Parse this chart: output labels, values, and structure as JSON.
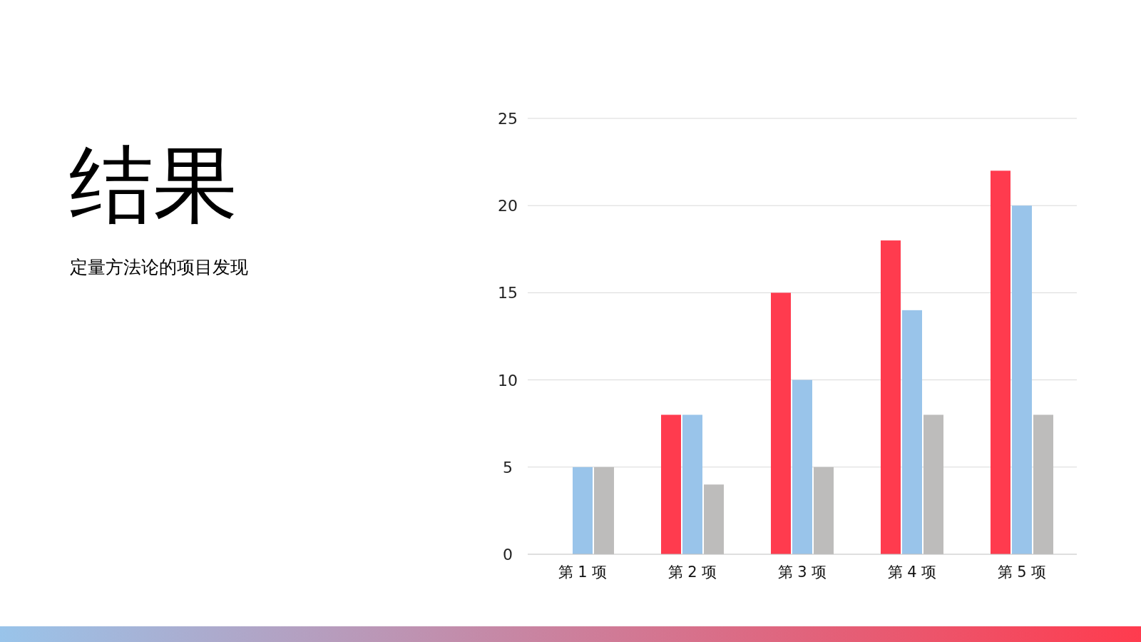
{
  "chart_data": {
    "type": "bar",
    "title": "结果",
    "subtitle": "定量方法论的项目发现",
    "categories": [
      "第 1 项",
      "第 2 项",
      "第 3 项",
      "第 4 项",
      "第 5 项"
    ],
    "series": [
      {
        "color": "#ff3b4e",
        "values": [
          0,
          8,
          15,
          18,
          22
        ]
      },
      {
        "color": "#99c4ea",
        "values": [
          5,
          8,
          10,
          14,
          20
        ]
      },
      {
        "color": "#bdbcbb",
        "values": [
          5,
          4,
          5,
          8,
          8
        ]
      }
    ],
    "ylim": [
      0,
      25
    ],
    "yticks": [
      0,
      5,
      10,
      15,
      20,
      25
    ],
    "grid": "y"
  }
}
